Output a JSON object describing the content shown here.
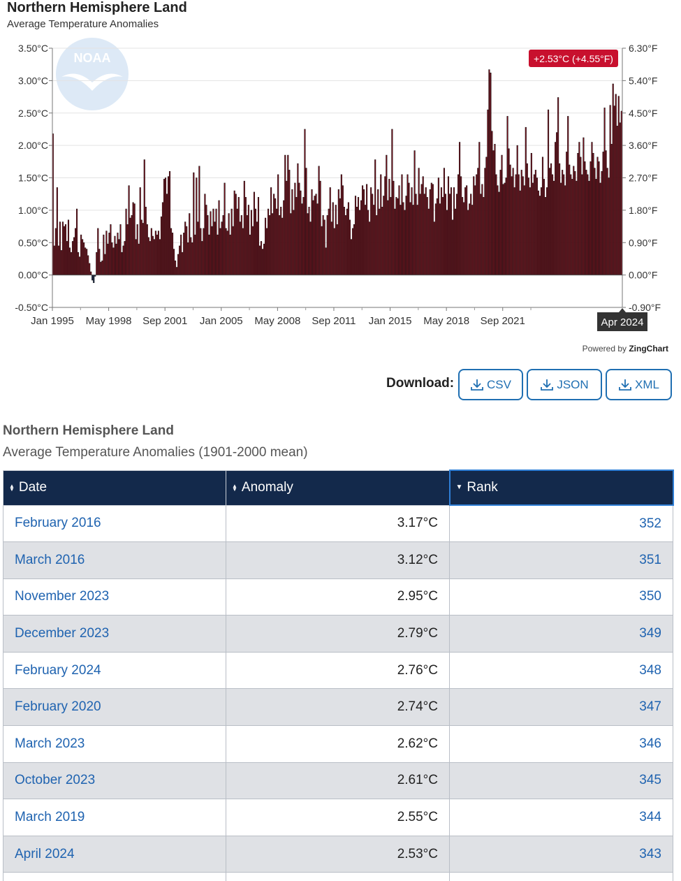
{
  "chart": {
    "title": "Northern Hemisphere Land",
    "subtitle": "Average Temperature Anomalies",
    "tooltip": "+2.53°C (+4.55°F)",
    "hover_label": "Apr 2024",
    "powered_by_prefix": "Powered by ",
    "powered_by_brand": "ZingChart",
    "watermark_icon": "noaa-logo-icon"
  },
  "chart_data": {
    "type": "bar",
    "title": "Northern Hemisphere Land",
    "subtitle": "Average Temperature Anomalies",
    "x_start": "Jan 1995",
    "x_end": "Apr 2024",
    "x_tick_labels": [
      "Jan 1995",
      "May 1998",
      "Sep 2001",
      "Jan 2005",
      "May 2008",
      "Sep 2011",
      "Jan 2015",
      "May 2018",
      "Sep 2021"
    ],
    "y_left_ticks": [
      "3.50°C",
      "3.00°C",
      "2.50°C",
      "2.00°C",
      "1.50°C",
      "1.00°C",
      "0.50°C",
      "0.00°C",
      "-0.50°C"
    ],
    "y_right_ticks": [
      "6.30°F",
      "5.40°F",
      "4.50°F",
      "3.60°F",
      "2.70°F",
      "1.80°F",
      "0.90°F",
      "0.00°F",
      "-0.90°F"
    ],
    "ylim": [
      -0.5,
      3.5
    ],
    "positive_color": "#7a0f1c",
    "negative_color": "#1b2b4a",
    "series": [
      {
        "values": [
          2.18,
          0.45,
          0.72,
          1.35,
          0.45,
          0.82,
          0.38,
          0.82,
          0.75,
          0.78,
          0.52,
          0.85,
          0.42,
          0.35,
          0.52,
          0.58,
          0.72,
          1.02,
          0.35,
          0.28,
          0.62,
          0.55,
          0.5,
          0.42,
          0.4,
          0.3,
          0.18,
          0.05,
          -0.08,
          -0.12,
          -0.02,
          0.35,
          0.72,
          0.4,
          0.2,
          0.22,
          0.62,
          0.32,
          0.68,
          0.48,
          0.65,
          0.78,
          0.5,
          0.42,
          0.6,
          0.48,
          0.65,
          0.55,
          0.78,
          0.35,
          0.45,
          0.52,
          1.02,
          0.78,
          1.38,
          0.88,
          0.92,
          1.12,
          1.1,
          0.55,
          0.78,
          0.48,
          1.35,
          0.85,
          0.8,
          1.78,
          1.05,
          0.78,
          0.58,
          0.52,
          0.72,
          0.6,
          0.55,
          0.68,
          0.62,
          0.68,
          0.55,
          0.9,
          1.12,
          1.48,
          1.5,
          1.25,
          1.52,
          1.6,
          0.72,
          0.65,
          0.4,
          0.22,
          0.12,
          0.32,
          0.45,
          0.62,
          0.35,
          0.65,
          0.82,
          0.75,
          0.5,
          0.95,
          0.58,
          0.5,
          1.58,
          0.62,
          1.5,
          0.82,
          1.68,
          0.72,
          0.52,
          0.72,
          1.25,
          1.08,
          0.92,
          0.62,
          0.98,
          0.75,
          1.02,
          0.82,
          1.02,
          0.62,
          1.15,
          0.72,
          0.82,
          0.92,
          1.42,
          0.72,
          0.68,
          0.95,
          0.62,
          1.02,
          0.75,
          1.3,
          1.25,
          1.02,
          1.2,
          0.82,
          0.92,
          0.72,
          1.45,
          1.2,
          0.92,
          1.08,
          0.62,
          1.0,
          0.75,
          1.28,
          1.02,
          0.82,
          1.2,
          0.45,
          0.52,
          0.4,
          0.48,
          0.88,
          0.72,
          1.02,
          0.92,
          1.35,
          0.95,
          1.25,
          1.18,
          1.02,
          1.55,
          0.92,
          1.05,
          0.88,
          1.15,
          1.85,
          1.45,
          1.85,
          1.62,
          0.95,
          1.32,
          1.0,
          1.42,
          1.2,
          1.72,
          1.42,
          1.3,
          1.1,
          1.2,
          2.25,
          1.65,
          0.95,
          1.05,
          0.82,
          1.32,
          1.15,
          1.22,
          1.25,
          1.1,
          1.68,
          1.45,
          0.75,
          0.92,
          0.85,
          0.42,
          0.92,
          1.02,
          1.35,
          0.82,
          1.12,
          0.72,
          1.08,
          0.78,
          1.32,
          1.18,
          1.55,
          1.38,
          1.05,
          0.92,
          1.02,
          1.12,
          0.85,
          0.55,
          0.72,
          0.78,
          1.22,
          1.05,
          1.2,
          1.0,
          1.15,
          1.38,
          1.32,
          1.08,
          1.4,
          1.0,
          0.82,
          1.35,
          1.25,
          1.08,
          1.78,
          0.92,
          1.32,
          1.02,
          1.55,
          1.05,
          1.22,
          1.52,
          1.85,
          1.15,
          1.48,
          1.2,
          2.25,
          1.45,
          1.02,
          1.2,
          1.18,
          1.38,
          1.08,
          1.55,
          1.12,
          1.0,
          1.22,
          1.55,
          1.42,
          1.12,
          1.35,
          1.08,
          1.92,
          1.25,
          1.08,
          1.65,
          1.25,
          1.4,
          1.52,
          1.25,
          1.35,
          1.2,
          1.02,
          1.32,
          1.42,
          1.4,
          0.82,
          1.1,
          1.18,
          1.5,
          1.1,
          1.35,
          1.2,
          1.65,
          1.25,
          1.0,
          1.52,
          1.25,
          1.35,
          0.85,
          1.35,
          1.02,
          1.25,
          1.55,
          2.05,
          1.52,
          1.2,
          1.12,
          1.35,
          1.38,
          1.0,
          1.1,
          1.25,
          1.08,
          1.52,
          1.38,
          1.55,
          1.65,
          2.05,
          1.25,
          1.4,
          1.2,
          1.65,
          1.82,
          2.55,
          3.17,
          3.12,
          2.22,
          1.92,
          2.02,
          1.55,
          1.38,
          1.28,
          1.62,
          1.85,
          1.4,
          1.42,
          1.5,
          2.45,
          1.95,
          1.7,
          1.52,
          1.65,
          1.35,
          1.55,
          2.0,
          1.55,
          1.3,
          1.62,
          1.52,
          1.38,
          2.28,
          1.72,
          1.5,
          1.35,
          1.88,
          1.42,
          1.55,
          1.62,
          1.5,
          1.3,
          1.22,
          1.35,
          1.82,
          1.48,
          1.2,
          1.35,
          2.55,
          1.65,
          1.72,
          1.55,
          1.45,
          2.05,
          2.2,
          2.74,
          1.72,
          1.42,
          1.62,
          1.55,
          1.38,
          1.9,
          2.45,
          1.7,
          1.55,
          1.48,
          1.68,
          1.6,
          1.45,
          1.88,
          2.05,
          1.82,
          1.55,
          2.12,
          1.75,
          1.62,
          1.55,
          1.45,
          1.75,
          2.05,
          1.88,
          1.65,
          1.48,
          1.82,
          1.75,
          1.42,
          1.6,
          1.9,
          2.58,
          1.92,
          1.65,
          1.5,
          2.62,
          2.02,
          2.95,
          2.61,
          2.79,
          2.3,
          2.76,
          2.35,
          2.53
        ]
      }
    ]
  },
  "download": {
    "label": "Download:",
    "buttons": [
      "CSV",
      "JSON",
      "XML"
    ],
    "icon": "download-icon"
  },
  "table": {
    "title": "Northern Hemisphere Land",
    "subtitle": "Average Temperature Anomalies (1901-2000 mean)",
    "headers": {
      "date": "Date",
      "anomaly": "Anomaly",
      "rank": "Rank",
      "date_sort_icon": "sort-both-icon",
      "anomaly_sort_icon": "sort-both-icon",
      "rank_sort_icon": "sort-desc-icon"
    },
    "rows": [
      {
        "date": "February 2016",
        "anomaly": "3.17°C",
        "rank": "352"
      },
      {
        "date": "March 2016",
        "anomaly": "3.12°C",
        "rank": "351"
      },
      {
        "date": "November 2023",
        "anomaly": "2.95°C",
        "rank": "350"
      },
      {
        "date": "December 2023",
        "anomaly": "2.79°C",
        "rank": "349"
      },
      {
        "date": "February 2024",
        "anomaly": "2.76°C",
        "rank": "348"
      },
      {
        "date": "February 2020",
        "anomaly": "2.74°C",
        "rank": "347"
      },
      {
        "date": "March 2023",
        "anomaly": "2.62°C",
        "rank": "346"
      },
      {
        "date": "October 2023",
        "anomaly": "2.61°C",
        "rank": "345"
      },
      {
        "date": "March 2019",
        "anomaly": "2.55°C",
        "rank": "344"
      },
      {
        "date": "April 2024",
        "anomaly": "2.53°C",
        "rank": "343"
      },
      {
        "date": "",
        "anomaly": "",
        "rank": ""
      }
    ]
  }
}
